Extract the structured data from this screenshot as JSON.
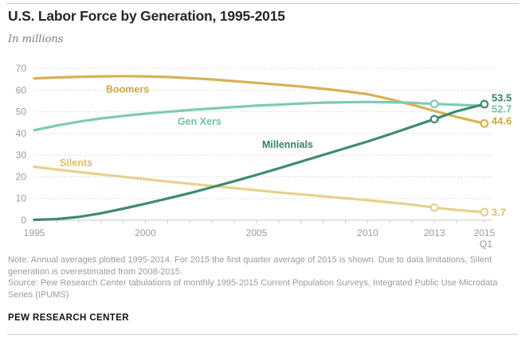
{
  "header": {
    "title": "U.S. Labor Force by Generation, 1995-2015",
    "subtitle": "In millions"
  },
  "notes": {
    "note": "Note: Annual averages plotted 1995-2014. For 2015 the first quarter average of 2015 is shown. Due to data limitations, Silent generation is overestimated from 2008-2015.",
    "source": "Source: Pew Research Center tabulations of monthly 1995-2015 Current Population Surveys, Integrated Public Use Microdata Series (IPUMS)"
  },
  "footer": {
    "brand": "PEW RESEARCH CENTER"
  },
  "chart_data": {
    "type": "line",
    "title": "U.S. Labor Force by Generation, 1995-2015",
    "ylabel": "In millions",
    "ylim": [
      0,
      70
    ],
    "yticks": [
      0,
      10,
      20,
      30,
      40,
      50,
      60,
      70
    ],
    "grid": "dotted horizontal",
    "legend_position": "inline labels on lines",
    "x": [
      1995,
      1996,
      1997,
      1998,
      1999,
      2000,
      2001,
      2002,
      2003,
      2004,
      2005,
      2006,
      2007,
      2008,
      2009,
      2010,
      2011,
      2012,
      2013,
      2014,
      2015.25
    ],
    "x_ticks": [
      {
        "x": 1995,
        "label": "1995"
      },
      {
        "x": 2000,
        "label": "2000"
      },
      {
        "x": 2005,
        "label": "2005"
      },
      {
        "x": 2010,
        "label": "2010"
      },
      {
        "x": 2013,
        "label": "2013"
      },
      {
        "x": 2015.25,
        "label": "2015",
        "label2": "Q1"
      }
    ],
    "series": [
      {
        "name": "Silents",
        "color": "#e8d18e",
        "label_color": "#ddbf62",
        "end_label": "3.7",
        "values": [
          24.6,
          23.4,
          22.2,
          21.1,
          20.0,
          18.9,
          17.8,
          16.8,
          15.8,
          14.8,
          13.8,
          12.8,
          11.9,
          11.0,
          10.1,
          9.2,
          8.2,
          7.2,
          5.8,
          4.7,
          3.7
        ]
      },
      {
        "name": "Boomers",
        "color": "#d6b254",
        "label_color": "#d2a83e",
        "end_label": "44.6",
        "values": [
          65.4,
          65.8,
          66.1,
          66.3,
          66.4,
          66.3,
          66.0,
          65.5,
          64.9,
          64.1,
          63.3,
          62.5,
          61.6,
          60.6,
          59.4,
          58.1,
          55.8,
          53.2,
          50.4,
          47.6,
          44.6
        ]
      },
      {
        "name": "Gen Xers",
        "color": "#7ecab6",
        "label_color": "#6ec3a9",
        "end_label": "52.7",
        "values": [
          41.5,
          43.6,
          45.4,
          46.9,
          48.1,
          49.1,
          50.0,
          50.8,
          51.5,
          52.2,
          52.8,
          53.3,
          53.8,
          54.2,
          54.4,
          54.5,
          54.4,
          54.1,
          53.6,
          53.2,
          52.7
        ]
      },
      {
        "name": "Millennials",
        "color": "#3e8a72",
        "label_color": "#37806a",
        "end_label": "53.5",
        "values": [
          0.2,
          0.5,
          1.5,
          3.2,
          5.3,
          7.6,
          10.0,
          12.5,
          15.2,
          18.0,
          20.9,
          23.9,
          27.0,
          30.1,
          33.2,
          36.3,
          39.6,
          43.1,
          46.6,
          50.2,
          53.5
        ]
      }
    ],
    "markers": [
      {
        "series": "Silents",
        "x": 2013
      },
      {
        "series": "Silents",
        "x": 2015.25
      },
      {
        "series": "Boomers",
        "x": 2015.25
      },
      {
        "series": "Gen Xers",
        "x": 2013
      },
      {
        "series": "Millennials",
        "x": 2013
      },
      {
        "series": "Millennials",
        "x": 2015.25
      }
    ]
  }
}
